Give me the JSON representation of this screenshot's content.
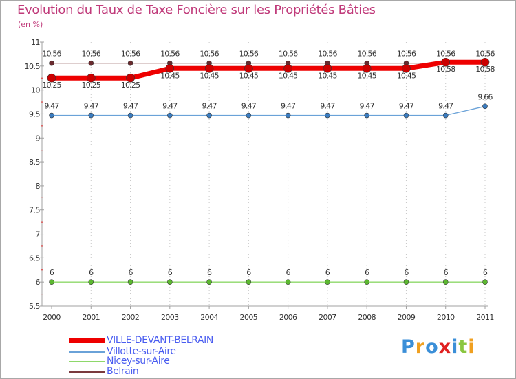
{
  "chart_data": {
    "type": "line",
    "title": "Evolution du Taux de Taxe Foncière sur les Propriétés Bâties",
    "ylabel": "(en %)",
    "xlabel": "",
    "ylim": [
      5.5,
      11
    ],
    "y_ticks": [
      "5.5",
      "6",
      "6.5",
      "7",
      "7.5",
      "8",
      "8.5",
      "9",
      "9.5",
      "10",
      "10.5",
      "11"
    ],
    "categories": [
      "2000",
      "2001",
      "2002",
      "2003",
      "2004",
      "2005",
      "2006",
      "2007",
      "2008",
      "2009",
      "2010",
      "2011"
    ],
    "series": [
      {
        "name": "Belrain",
        "color": "#7a3a3e",
        "values": [
          10.56,
          10.56,
          10.56,
          10.56,
          10.56,
          10.56,
          10.56,
          10.56,
          10.56,
          10.56,
          10.56,
          10.56
        ],
        "labels": [
          "10.56",
          "10.56",
          "10.56",
          "10.56",
          "10.56",
          "10.56",
          "10.56",
          "10.56",
          "10.56",
          "10.56",
          "10.56",
          "10.56"
        ]
      },
      {
        "name": "Villotte-sur-Aire",
        "color": "#6aa2d8",
        "values": [
          9.47,
          9.47,
          9.47,
          9.47,
          9.47,
          9.47,
          9.47,
          9.47,
          9.47,
          9.47,
          9.47,
          9.66
        ],
        "labels": [
          "9.47",
          "9.47",
          "9.47",
          "9.47",
          "9.47",
          "9.47",
          "9.47",
          "9.47",
          "9.47",
          "9.47",
          "9.47",
          "9.66"
        ]
      },
      {
        "name": "Nicey-sur-Aire",
        "color": "#8ed86a",
        "values": [
          6,
          6,
          6,
          6,
          6,
          6,
          6,
          6,
          6,
          6,
          6,
          6
        ],
        "labels": [
          "6",
          "6",
          "6",
          "6",
          "6",
          "6",
          "6",
          "6",
          "6",
          "6",
          "6",
          "6"
        ]
      },
      {
        "name": "VILLE-DEVANT-BELRAIN",
        "color": "#ee0000",
        "values": [
          10.25,
          10.25,
          10.25,
          10.45,
          10.45,
          10.45,
          10.45,
          10.45,
          10.45,
          10.45,
          10.58,
          10.58
        ],
        "labels": [
          "10.25",
          "10.25",
          "10.25",
          "10.45",
          "10.45",
          "10.45",
          "10.45",
          "10.45",
          "10.45",
          "10.45",
          "10.58",
          "10.58"
        ]
      }
    ],
    "legend": [
      {
        "name": "VILLE-DEVANT-BELRAIN",
        "color": "#ee0000",
        "weight": "thick"
      },
      {
        "name": "Villotte-sur-Aire",
        "color": "#6aa2d8",
        "weight": "thin"
      },
      {
        "name": "Nicey-sur-Aire",
        "color": "#8ed86a",
        "weight": "thin"
      },
      {
        "name": "Belrain",
        "color": "#7a3a3e",
        "weight": "thin"
      }
    ]
  },
  "logo": {
    "text": "Proxiti",
    "letters": [
      {
        "ch": "P",
        "color": "#3b8fd8"
      },
      {
        "ch": "r",
        "color": "#f0a020"
      },
      {
        "ch": "o",
        "color": "#3b8fd8"
      },
      {
        "ch": "x",
        "color": "#e02020"
      },
      {
        "ch": "i",
        "color": "#3b8fd8"
      },
      {
        "ch": "t",
        "color": "#8ac640"
      },
      {
        "ch": "i",
        "color": "#f0a020"
      }
    ]
  }
}
